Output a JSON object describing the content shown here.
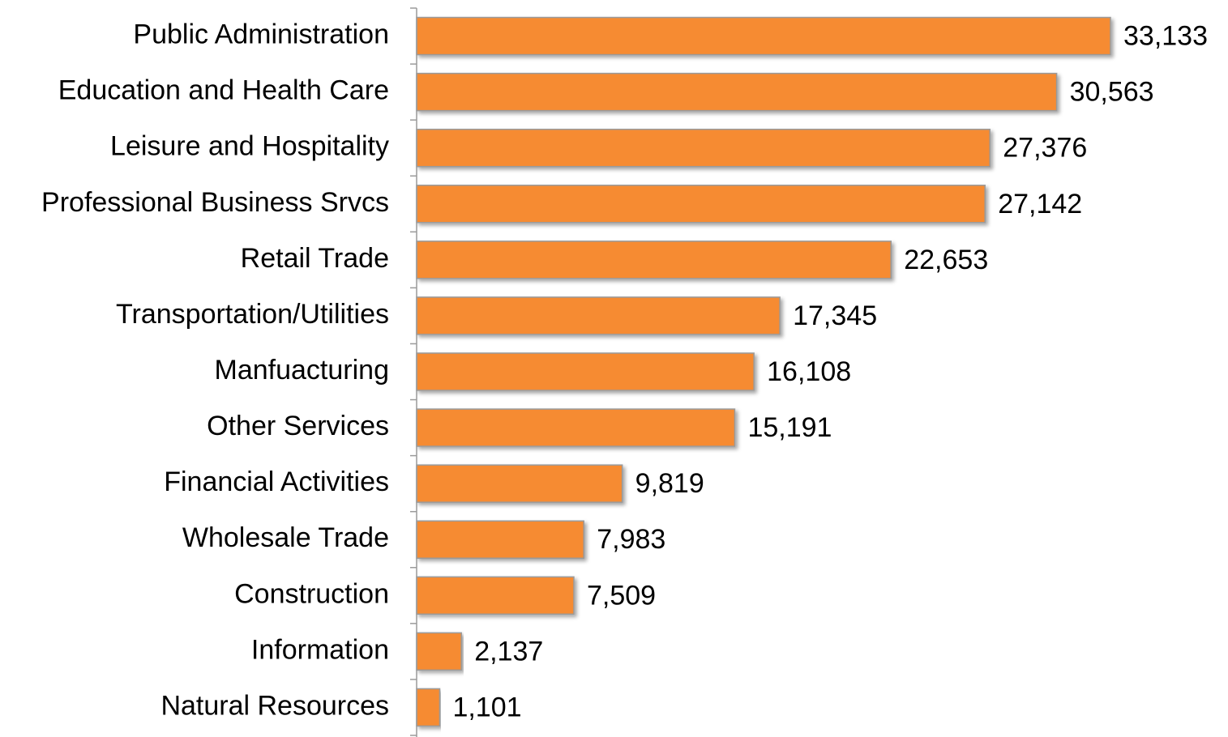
{
  "chart_data": {
    "type": "bar",
    "orientation": "horizontal",
    "categories": [
      "Public Administration",
      "Education and Health Care",
      "Leisure and Hospitality",
      "Professional Business Srvcs",
      "Retail Trade",
      "Transportation/Utilities",
      "Manfuacturing",
      "Other Services",
      "Financial Activities",
      "Wholesale Trade",
      "Construction",
      "Information",
      "Natural Resources"
    ],
    "values": [
      33133,
      30563,
      27376,
      27142,
      22653,
      17345,
      16108,
      15191,
      9819,
      7983,
      7509,
      2137,
      1101
    ],
    "value_labels": [
      "33,133",
      "30,563",
      "27,376",
      "27,142",
      "22,653",
      "17,345",
      "16,108",
      "15,191",
      "9,819",
      "7,983",
      "7,509",
      "2,137",
      "1,101"
    ],
    "color": "#f68b33"
  }
}
